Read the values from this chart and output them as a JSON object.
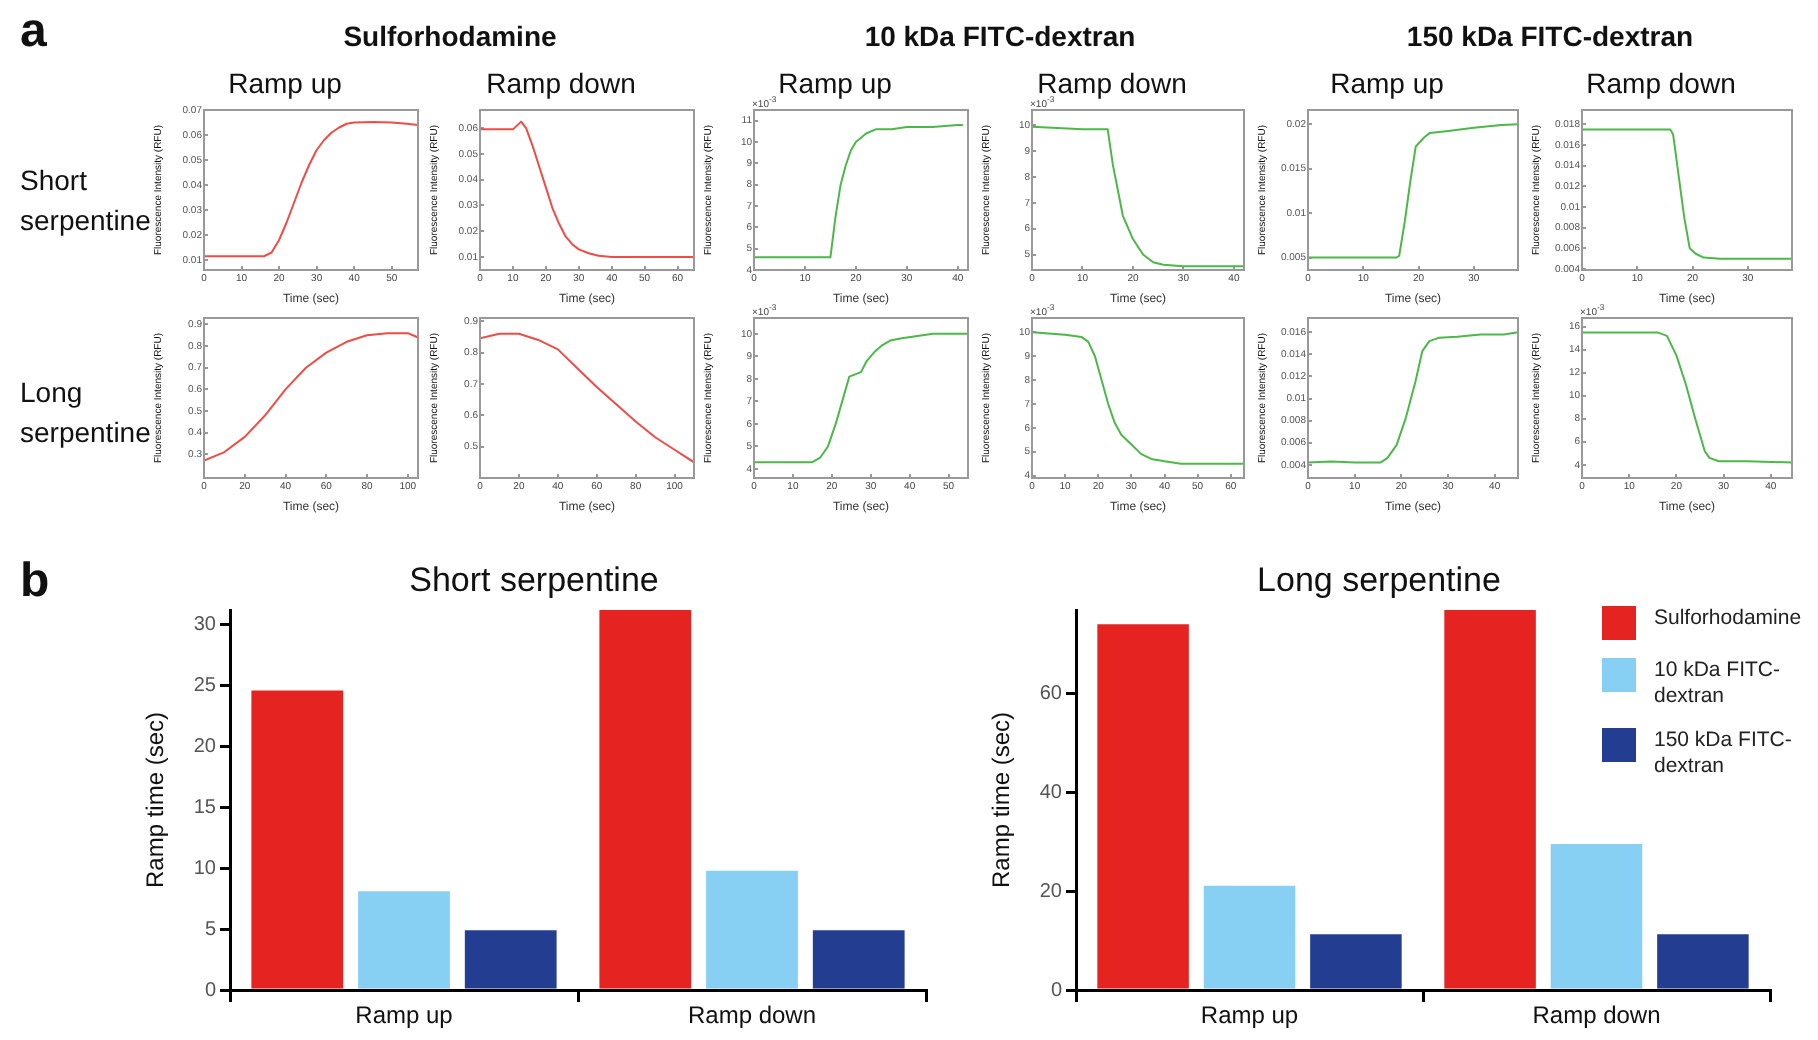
{
  "chart_data": [
    {
      "type": "line",
      "title": "Ramp up",
      "xlabel": "Time (sec)",
      "ylabel": "Fluorescence Intensity (RFU)",
      "annotations": [
        "a",
        "Sulforhodamine",
        "Short serpentine"
      ],
      "xlim": [
        0,
        57
      ],
      "xticks": [
        0,
        10,
        20,
        30,
        40,
        50
      ],
      "ylim": [
        0.006,
        0.07
      ],
      "yticks": [
        0.01,
        0.02,
        0.03,
        0.04,
        0.05,
        0.06,
        0.07
      ],
      "x": [
        0,
        16,
        18,
        20,
        22,
        24,
        26,
        28,
        30,
        32,
        34,
        36,
        38,
        40,
        45,
        50,
        54,
        57
      ],
      "series": [
        {
          "color": "#ee4d46",
          "values": [
            0.0115,
            0.0115,
            0.013,
            0.018,
            0.025,
            0.033,
            0.041,
            0.048,
            0.054,
            0.058,
            0.061,
            0.063,
            0.0645,
            0.065,
            0.0652,
            0.065,
            0.0645,
            0.064
          ]
        }
      ]
    },
    {
      "type": "line",
      "title": "Ramp down",
      "xlabel": "Time (sec)",
      "ylabel": "Fluorescence Intensity (RFU)",
      "xlim": [
        0,
        65
      ],
      "xticks": [
        0,
        10,
        20,
        30,
        40,
        50,
        60
      ],
      "ylim": [
        0.005,
        0.067
      ],
      "yticks": [
        0.01,
        0.02,
        0.03,
        0.04,
        0.05,
        0.06
      ],
      "x": [
        0,
        10,
        12.5,
        14,
        16,
        18,
        20,
        22,
        24,
        26,
        28,
        30,
        33,
        36,
        40,
        65
      ],
      "series": [
        {
          "color": "#ee4d46",
          "values": [
            0.0595,
            0.0595,
            0.0625,
            0.06,
            0.053,
            0.045,
            0.037,
            0.029,
            0.023,
            0.018,
            0.015,
            0.013,
            0.0115,
            0.0105,
            0.01,
            0.01
          ]
        }
      ]
    },
    {
      "type": "line",
      "title": "Ramp up",
      "xlabel": "Time (sec)",
      "ylabel": "Fluorescence Intensity (RFU)",
      "annotations": [
        "10 kDa FITC-dextran",
        "×10$^{-3}$"
      ],
      "xlim": [
        0,
        42
      ],
      "xticks": [
        0,
        10,
        20,
        30,
        40
      ],
      "ylim": [
        4,
        11.5
      ],
      "yticks": [
        4,
        5,
        6,
        7,
        8,
        9,
        10,
        11
      ],
      "x": [
        0,
        15,
        16,
        17,
        18,
        19,
        20,
        22,
        24,
        27,
        30,
        35,
        40,
        41
      ],
      "series": [
        {
          "color": "#4cb848",
          "values": [
            4.6,
            4.6,
            6.5,
            8.0,
            8.9,
            9.6,
            10.0,
            10.4,
            10.6,
            10.6,
            10.7,
            10.7,
            10.8,
            10.8
          ]
        }
      ]
    },
    {
      "type": "line",
      "title": "Ramp down",
      "xlabel": "Time (sec)",
      "ylabel": "Fluorescence Intensity (RFU)",
      "annotations": [
        "×10$^{-3}$"
      ],
      "xlim": [
        0,
        42
      ],
      "xticks": [
        0,
        10,
        20,
        30,
        40
      ],
      "ylim": [
        4.4,
        10.6
      ],
      "yticks": [
        5,
        6,
        7,
        8,
        9,
        10
      ],
      "x": [
        0,
        10,
        15,
        16,
        17,
        18,
        20,
        22,
        24,
        26,
        30,
        42
      ],
      "series": [
        {
          "color": "#4cb848",
          "values": [
            9.95,
            9.85,
            9.85,
            8.5,
            7.5,
            6.5,
            5.6,
            5.0,
            4.7,
            4.6,
            4.55,
            4.55
          ]
        }
      ]
    },
    {
      "type": "line",
      "title": "Ramp up",
      "xlabel": "Time (sec)",
      "ylabel": "Fluorescence Intensity (RFU)",
      "annotations": [
        "150 kDa FITC-dextran"
      ],
      "xlim": [
        0,
        38
      ],
      "xticks": [
        0,
        10,
        20,
        30
      ],
      "ylim": [
        0.0036,
        0.0216
      ],
      "yticks": [
        0.005,
        0.01,
        0.015,
        0.02
      ],
      "x": [
        0,
        16,
        16.5,
        17.5,
        18.5,
        19.5,
        21,
        22,
        25,
        30,
        35,
        38
      ],
      "series": [
        {
          "color": "#4cb848",
          "values": [
            0.005,
            0.005,
            0.0052,
            0.009,
            0.0135,
            0.0175,
            0.0185,
            0.019,
            0.0192,
            0.0196,
            0.0199,
            0.02
          ]
        }
      ]
    },
    {
      "type": "line",
      "title": "Ramp down",
      "xlabel": "Time (sec)",
      "ylabel": "Fluorescence Intensity (RFU)",
      "xlim": [
        0,
        38
      ],
      "xticks": [
        0,
        10,
        20,
        30
      ],
      "ylim": [
        0.0039,
        0.0194
      ],
      "yticks": [
        0.004,
        0.006,
        0.008,
        0.01,
        0.012,
        0.014,
        0.016,
        0.018
      ],
      "x": [
        0,
        16,
        16.5,
        17.5,
        18.5,
        19.5,
        20.5,
        22,
        25,
        38
      ],
      "series": [
        {
          "color": "#4cb848",
          "values": [
            0.0175,
            0.0175,
            0.017,
            0.013,
            0.009,
            0.006,
            0.0055,
            0.0051,
            0.005,
            0.005
          ]
        }
      ]
    },
    {
      "type": "line",
      "xlabel": "Time (sec)",
      "ylabel": "Fluorescence Intensity (RFU)",
      "annotations": [
        "Long serpentine"
      ],
      "xlim": [
        0,
        105
      ],
      "xticks": [
        0,
        20,
        40,
        60,
        80,
        100
      ],
      "ylim": [
        0.19,
        0.93
      ],
      "yticks": [
        0.3,
        0.4,
        0.5,
        0.6,
        0.7,
        0.8,
        0.9
      ],
      "x": [
        0,
        10,
        20,
        30,
        40,
        50,
        60,
        70,
        80,
        90,
        100,
        105
      ],
      "series": [
        {
          "color": "#ee4d46",
          "values": [
            0.27,
            0.31,
            0.38,
            0.48,
            0.6,
            0.7,
            0.77,
            0.82,
            0.85,
            0.86,
            0.86,
            0.84
          ]
        }
      ]
    },
    {
      "type": "line",
      "xlabel": "Time (sec)",
      "ylabel": "Fluorescence Intensity (RFU)",
      "xlim": [
        0,
        110
      ],
      "xticks": [
        0,
        20,
        40,
        60,
        80,
        100
      ],
      "ylim": [
        0.4,
        0.91
      ],
      "yticks": [
        0.5,
        0.6,
        0.7,
        0.8,
        0.9
      ],
      "x": [
        0,
        10,
        20,
        30,
        40,
        50,
        60,
        70,
        80,
        90,
        100,
        110
      ],
      "series": [
        {
          "color": "#ee4d46",
          "values": [
            0.845,
            0.86,
            0.86,
            0.84,
            0.81,
            0.75,
            0.69,
            0.635,
            0.58,
            0.53,
            0.49,
            0.45
          ]
        }
      ]
    },
    {
      "type": "line",
      "xlabel": "Time (sec)",
      "ylabel": "Fluorescence Intensity (RFU)",
      "annotations": [
        "×10$^{-3}$"
      ],
      "xlim": [
        0,
        55
      ],
      "xticks": [
        0,
        10,
        20,
        30,
        40,
        50
      ],
      "ylim": [
        3.6,
        10.7
      ],
      "yticks": [
        4,
        5,
        6,
        7,
        8,
        9,
        10
      ],
      "x": [
        0,
        15,
        17,
        19,
        21,
        23,
        24.5,
        26,
        27.5,
        29,
        31,
        33,
        35,
        38,
        42,
        46,
        55
      ],
      "series": [
        {
          "color": "#4cb848",
          "values": [
            4.3,
            4.3,
            4.5,
            5.0,
            6.0,
            7.2,
            8.1,
            8.2,
            8.3,
            8.8,
            9.2,
            9.5,
            9.7,
            9.8,
            9.9,
            10.0,
            10.0
          ]
        }
      ]
    },
    {
      "type": "line",
      "xlabel": "Time (sec)",
      "ylabel": "Fluorescence Intensity (RFU)",
      "annotations": [
        "×10$^{-3}$"
      ],
      "xlim": [
        0,
        64
      ],
      "xticks": [
        0,
        10,
        20,
        30,
        40,
        50,
        60
      ],
      "ylim": [
        3.9,
        10.6
      ],
      "yticks": [
        4,
        5,
        6,
        7,
        8,
        9,
        10
      ],
      "x": [
        0,
        10,
        15,
        17,
        19,
        21,
        23,
        25,
        27,
        30,
        33,
        36,
        40,
        45,
        50,
        55,
        64
      ],
      "series": [
        {
          "color": "#4cb848",
          "values": [
            10.0,
            9.9,
            9.8,
            9.6,
            9.0,
            8.0,
            7.0,
            6.2,
            5.7,
            5.3,
            4.9,
            4.7,
            4.6,
            4.5,
            4.5,
            4.5,
            4.5
          ]
        }
      ]
    },
    {
      "type": "line",
      "xlabel": "Time (sec)",
      "ylabel": "Fluorescence Intensity (RFU)",
      "xlim": [
        0,
        45
      ],
      "xticks": [
        0,
        10,
        20,
        30,
        40
      ],
      "ylim": [
        0.0028,
        0.0173
      ],
      "yticks": [
        0.004,
        0.006,
        0.008,
        0.01,
        0.012,
        0.014,
        0.016
      ],
      "x": [
        0,
        5,
        10,
        15.5,
        17,
        19,
        21,
        23,
        24.5,
        26,
        28,
        32,
        37,
        42,
        45
      ],
      "series": [
        {
          "color": "#4cb848",
          "values": [
            0.0042,
            0.0043,
            0.0042,
            0.0042,
            0.0046,
            0.0058,
            0.0083,
            0.0115,
            0.0143,
            0.0152,
            0.0155,
            0.0156,
            0.0158,
            0.0158,
            0.016
          ]
        }
      ]
    },
    {
      "type": "line",
      "xlabel": "Time (sec)",
      "ylabel": "Fluorescence Intensity (RFU)",
      "annotations": [
        "×10$^{-3}$"
      ],
      "xlim": [
        0,
        44.5
      ],
      "xticks": [
        0,
        10,
        20,
        30,
        40
      ],
      "ylim": [
        2.85,
        16.75
      ],
      "yticks": [
        4,
        6,
        8,
        10,
        12,
        14,
        16
      ],
      "x": [
        0,
        10,
        16,
        18,
        20,
        22,
        24,
        26,
        27,
        29,
        35,
        44.5
      ],
      "series": [
        {
          "color": "#4cb848",
          "values": [
            15.5,
            15.5,
            15.5,
            15.2,
            13.5,
            11.0,
            8.0,
            5.2,
            4.6,
            4.3,
            4.3,
            4.2
          ]
        }
      ]
    },
    {
      "type": "bar",
      "title": "Short serpentine",
      "ylabel": "Ramp time (sec)",
      "annotations": [
        "b"
      ],
      "categories": [
        "Ramp up",
        "Ramp down"
      ],
      "ylim": [
        0,
        31.2
      ],
      "yticks": [
        0,
        5,
        10,
        15,
        20,
        25,
        30
      ],
      "series": [
        {
          "color": "#e52421",
          "values": [
            24.6,
            31.2
          ]
        },
        {
          "color": "#87cff3",
          "values": [
            8.1,
            9.8
          ]
        },
        {
          "color": "#233e90",
          "values": [
            4.9,
            4.9
          ]
        }
      ]
    },
    {
      "type": "bar",
      "title": "Long serpentine",
      "ylabel": "Ramp time (sec)",
      "legend": "top right",
      "categories": [
        "Ramp up",
        "Ramp down"
      ],
      "ylim": [
        0,
        77
      ],
      "yticks": [
        0,
        20,
        40,
        60
      ],
      "series": [
        {
          "name": "Sulforhodamine",
          "color": "#e52421",
          "values": [
            74.1,
            77
          ]
        },
        {
          "name": "10 kDa FITC-dextran",
          "color": "#87cff3",
          "values": [
            21.1,
            29.6
          ]
        },
        {
          "name": "150 kDa FITC-dextran",
          "color": "#233e90",
          "values": [
            11.3,
            11.3
          ]
        }
      ]
    }
  ]
}
